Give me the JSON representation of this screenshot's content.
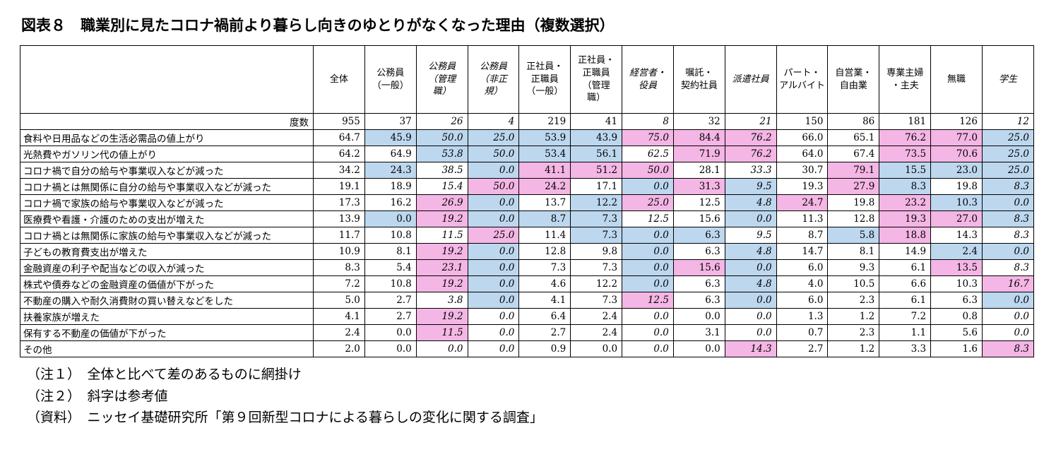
{
  "title": "図表８　職業別に見たコロナ禍前より暮らし向きのゆとりがなくなった理由（複数選択）",
  "colors": {
    "shade_higher_than_total": "#f4b6e4",
    "shade_lower_than_total": "#bdd7ee",
    "border": "#000000"
  },
  "table": {
    "corner_label": "",
    "freq_label": "度数",
    "columns": [
      {
        "label": "全体",
        "italic": false
      },
      {
        "label": "公務員\n（一般）",
        "italic": false
      },
      {
        "label": "公務員\n（管理\n職）",
        "italic": true
      },
      {
        "label": "公務員\n（非正\n規）",
        "italic": true
      },
      {
        "label": "正社員・\n正職員\n（一般）",
        "italic": false
      },
      {
        "label": "正社員・\n正職員\n（管理\n職）",
        "italic": false
      },
      {
        "label": "経営者・\n役員",
        "italic": true
      },
      {
        "label": "嘱託・\n契約社員",
        "italic": false
      },
      {
        "label": "派遣社員",
        "italic": true
      },
      {
        "label": "パート・\nアルバイト",
        "italic": false
      },
      {
        "label": "自営業・\n自由業",
        "italic": false
      },
      {
        "label": "専業主婦\n・主夫",
        "italic": false
      },
      {
        "label": "無職",
        "italic": false
      },
      {
        "label": "学生",
        "italic": true
      }
    ],
    "frequencies": [
      "955",
      "37",
      "26",
      "4",
      "219",
      "41",
      "8",
      "32",
      "21",
      "150",
      "86",
      "181",
      "126",
      "12"
    ],
    "rows": [
      {
        "label": "食料や日用品などの生活必需品の値上がり",
        "values": [
          "64.7",
          "45.9",
          "50.0",
          "25.0",
          "53.9",
          "43.9",
          "75.0",
          "84.4",
          "76.2",
          "66.0",
          "65.1",
          "76.2",
          "77.0",
          "25.0"
        ],
        "shades": [
          "",
          "b",
          "b",
          "b",
          "b",
          "b",
          "p",
          "p",
          "p",
          "",
          "",
          "p",
          "p",
          "b"
        ]
      },
      {
        "label": "光熱費やガソリン代の値上がり",
        "values": [
          "64.2",
          "64.9",
          "53.8",
          "50.0",
          "53.4",
          "56.1",
          "62.5",
          "71.9",
          "76.2",
          "64.0",
          "67.4",
          "73.5",
          "70.6",
          "25.0"
        ],
        "shades": [
          "",
          "",
          "b",
          "b",
          "b",
          "b",
          "",
          "p",
          "p",
          "",
          "",
          "p",
          "p",
          "b"
        ]
      },
      {
        "label": "コロナ禍で自分の給与や事業収入などが減った",
        "values": [
          "34.2",
          "24.3",
          "38.5",
          "0.0",
          "41.1",
          "51.2",
          "50.0",
          "28.1",
          "33.3",
          "30.7",
          "79.1",
          "15.5",
          "23.0",
          "25.0"
        ],
        "shades": [
          "",
          "b",
          "",
          "b",
          "p",
          "p",
          "p",
          "",
          "",
          "",
          "p",
          "b",
          "b",
          "b"
        ]
      },
      {
        "label": "コロナ禍とは無関係に自分の給与や事業収入などが減った",
        "values": [
          "19.1",
          "18.9",
          "15.4",
          "50.0",
          "24.2",
          "17.1",
          "0.0",
          "31.3",
          "9.5",
          "19.3",
          "27.9",
          "8.3",
          "19.8",
          "8.3"
        ],
        "shades": [
          "",
          "",
          "",
          "p",
          "p",
          "",
          "b",
          "p",
          "b",
          "",
          "p",
          "b",
          "",
          "b"
        ]
      },
      {
        "label": "コロナ禍で家族の給与や事業収入などが減った",
        "values": [
          "17.3",
          "16.2",
          "26.9",
          "0.0",
          "13.7",
          "12.2",
          "25.0",
          "12.5",
          "4.8",
          "24.7",
          "19.8",
          "23.2",
          "10.3",
          "0.0"
        ],
        "shades": [
          "",
          "",
          "p",
          "b",
          "",
          "b",
          "p",
          "",
          "b",
          "p",
          "",
          "p",
          "b",
          "b"
        ]
      },
      {
        "label": "医療費や看護・介護のための支出が増えた",
        "values": [
          "13.9",
          "0.0",
          "19.2",
          "0.0",
          "8.7",
          "7.3",
          "12.5",
          "15.6",
          "0.0",
          "11.3",
          "12.8",
          "19.3",
          "27.0",
          "8.3"
        ],
        "shades": [
          "",
          "b",
          "p",
          "b",
          "b",
          "b",
          "",
          "",
          "b",
          "",
          "",
          "p",
          "p",
          "b"
        ]
      },
      {
        "label": "コロナ禍とは無関係に家族の給与や事業収入などが減った",
        "values": [
          "11.7",
          "10.8",
          "11.5",
          "25.0",
          "11.4",
          "7.3",
          "0.0",
          "6.3",
          "9.5",
          "8.7",
          "5.8",
          "18.8",
          "14.3",
          "8.3"
        ],
        "shades": [
          "",
          "",
          "",
          "p",
          "",
          "b",
          "b",
          "b",
          "",
          "",
          "b",
          "p",
          "",
          ""
        ]
      },
      {
        "label": "子どもの教育費支出が増えた",
        "values": [
          "10.9",
          "8.1",
          "19.2",
          "0.0",
          "12.8",
          "9.8",
          "0.0",
          "6.3",
          "4.8",
          "14.7",
          "8.1",
          "14.9",
          "2.4",
          "0.0"
        ],
        "shades": [
          "",
          "",
          "p",
          "b",
          "",
          "",
          "b",
          "",
          "b",
          "",
          "",
          "",
          "b",
          "b"
        ]
      },
      {
        "label": "金融資産の利子や配当などの収入が減った",
        "values": [
          "8.3",
          "5.4",
          "23.1",
          "0.0",
          "7.3",
          "7.3",
          "0.0",
          "15.6",
          "0.0",
          "6.0",
          "9.3",
          "6.1",
          "13.5",
          "8.3"
        ],
        "shades": [
          "",
          "",
          "p",
          "b",
          "",
          "",
          "b",
          "p",
          "b",
          "",
          "",
          "",
          "p",
          ""
        ]
      },
      {
        "label": "株式や債券などの金融資産の価値が下がった",
        "values": [
          "7.2",
          "10.8",
          "19.2",
          "0.0",
          "4.6",
          "12.2",
          "0.0",
          "6.3",
          "4.8",
          "4.0",
          "10.5",
          "6.6",
          "10.3",
          "16.7"
        ],
        "shades": [
          "",
          "",
          "p",
          "b",
          "",
          "",
          "b",
          "",
          "b",
          "",
          "",
          "",
          "",
          "p"
        ]
      },
      {
        "label": "不動産の購入や耐久消費財の買い替えなどをした",
        "values": [
          "5.0",
          "2.7",
          "3.8",
          "0.0",
          "4.1",
          "7.3",
          "12.5",
          "6.3",
          "0.0",
          "6.0",
          "2.3",
          "6.1",
          "6.3",
          "0.0"
        ],
        "shades": [
          "",
          "",
          "",
          "b",
          "",
          "",
          "p",
          "",
          "b",
          "",
          "",
          "",
          "",
          "b"
        ]
      },
      {
        "label": "扶養家族が増えた",
        "values": [
          "4.1",
          "2.7",
          "19.2",
          "0.0",
          "6.4",
          "2.4",
          "0.0",
          "0.0",
          "0.0",
          "1.3",
          "1.2",
          "7.2",
          "0.8",
          "0.0"
        ],
        "shades": [
          "",
          "",
          "p",
          "",
          "",
          "",
          "",
          "",
          "",
          "",
          "",
          "",
          "",
          ""
        ]
      },
      {
        "label": "保有する不動産の価値が下がった",
        "values": [
          "2.4",
          "0.0",
          "11.5",
          "0.0",
          "2.7",
          "2.4",
          "0.0",
          "3.1",
          "0.0",
          "0.7",
          "2.3",
          "1.1",
          "5.6",
          "0.0"
        ],
        "shades": [
          "",
          "",
          "p",
          "",
          "",
          "",
          "",
          "",
          "",
          "",
          "",
          "",
          "",
          ""
        ]
      },
      {
        "label": "その他",
        "values": [
          "2.0",
          "0.0",
          "0.0",
          "0.0",
          "0.9",
          "0.0",
          "0.0",
          "0.0",
          "14.3",
          "2.7",
          "1.2",
          "3.3",
          "1.6",
          "8.3"
        ],
        "shades": [
          "",
          "",
          "",
          "",
          "",
          "",
          "",
          "",
          "p",
          "",
          "",
          "",
          "",
          "p"
        ]
      }
    ]
  },
  "notes": [
    "（注１）　全体と比べて差のあるものに網掛け",
    "（注２）　斜字は参考値",
    "（資料）　ニッセイ基礎研究所「第９回新型コロナによる暮らしの変化に関する調査」"
  ]
}
